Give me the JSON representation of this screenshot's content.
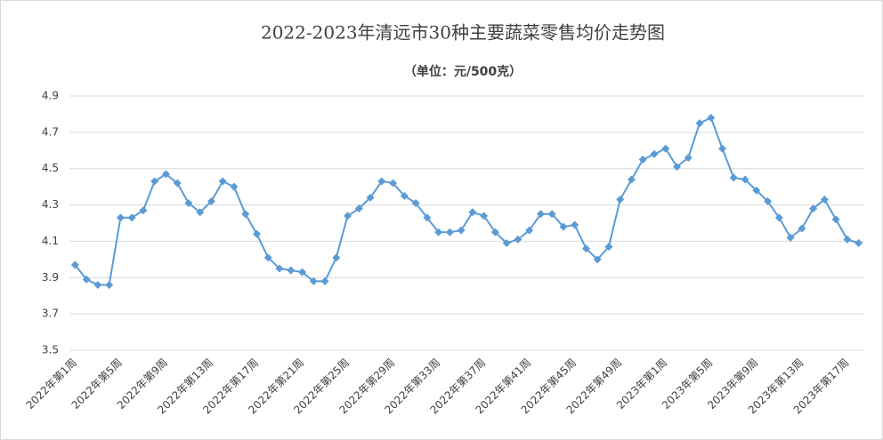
{
  "chart_data": {
    "type": "line",
    "title": "2022-2023年清远市30种主要蔬菜零售均价走势图",
    "subtitle": "（单位：元/500克）",
    "categories": [
      "2022年第1周",
      null,
      null,
      null,
      "2022年第5周",
      null,
      null,
      null,
      "2022年第9周",
      null,
      null,
      null,
      "2022年第13周",
      null,
      null,
      null,
      "2022年第17周",
      null,
      null,
      null,
      "2022年第21周",
      null,
      null,
      null,
      "2022年第25周",
      null,
      null,
      null,
      "2022年第29周",
      null,
      null,
      null,
      "2022年第33周",
      null,
      null,
      null,
      "2022年第37周",
      null,
      null,
      null,
      "2022年第41周",
      null,
      null,
      null,
      "2022年第45周",
      null,
      null,
      null,
      "2022年第49周",
      null,
      null,
      null,
      "2023年第1周",
      null,
      null,
      null,
      "2023年第5周",
      null,
      null,
      null,
      "2023年第9周",
      null,
      null,
      null,
      "2023年第13周",
      null,
      null,
      null,
      "2023年第17周",
      null
    ],
    "values": [
      3.97,
      3.89,
      3.86,
      3.86,
      4.23,
      4.23,
      4.27,
      4.43,
      4.47,
      4.42,
      4.31,
      4.26,
      4.32,
      4.43,
      4.4,
      4.25,
      4.14,
      4.01,
      3.95,
      3.94,
      3.93,
      3.88,
      3.88,
      4.01,
      4.24,
      4.28,
      4.34,
      4.43,
      4.42,
      4.35,
      4.31,
      4.23,
      4.15,
      4.15,
      4.16,
      4.26,
      4.24,
      4.15,
      4.09,
      4.11,
      4.16,
      4.25,
      4.25,
      4.18,
      4.19,
      4.06,
      4.0,
      4.07,
      4.33,
      4.44,
      4.55,
      4.58,
      4.61,
      4.51,
      4.56,
      4.75,
      4.78,
      4.61,
      4.45,
      4.44,
      4.38,
      4.32,
      4.23,
      4.12,
      4.17,
      4.28,
      4.33,
      4.22,
      4.11,
      4.09
    ],
    "color": "#5b9bd5",
    "ylim": [
      3.5,
      4.9
    ],
    "yticks": [
      3.5,
      3.7,
      3.9,
      4.1,
      4.3,
      4.5,
      4.7,
      4.9
    ],
    "grid": true
  }
}
